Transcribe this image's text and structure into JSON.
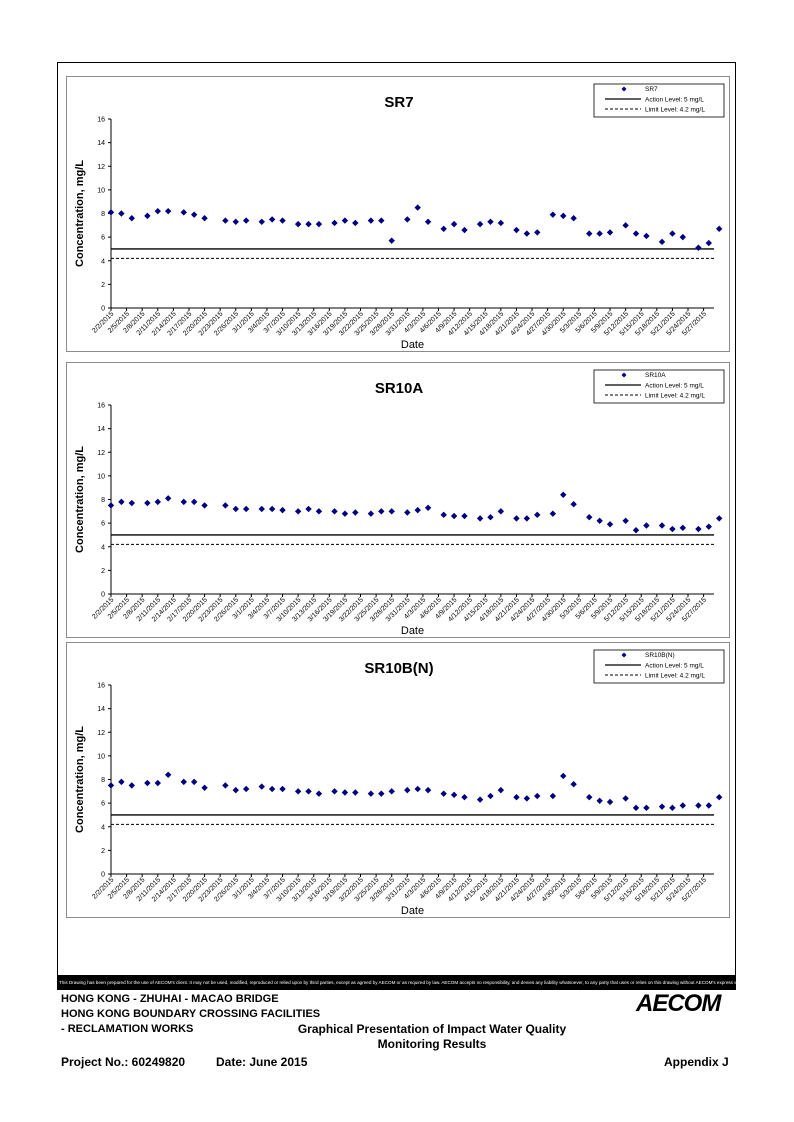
{
  "chart_data": [
    {
      "type": "scatter",
      "title": "SR7",
      "xlabel": "Date",
      "ylabel": "Concentration, mg/L",
      "ylim": [
        0,
        16
      ],
      "yticks": [
        0,
        2,
        4,
        6,
        8,
        10,
        12,
        14,
        16
      ],
      "xlim": [
        "2/2/2015",
        "5/29/2015"
      ],
      "xtick_labels": [
        "2/2/2015",
        "2/5/2015",
        "2/8/2015",
        "2/11/2015",
        "2/14/2015",
        "2/17/2015",
        "2/20/2015",
        "2/23/2015",
        "2/26/2015",
        "3/1/2015",
        "3/4/2015",
        "3/7/2015",
        "3/10/2015",
        "3/13/2015",
        "3/16/2015",
        "3/19/2015",
        "3/22/2015",
        "3/25/2015",
        "3/28/2015",
        "3/31/2015",
        "4/3/2015",
        "4/6/2015",
        "4/9/2015",
        "4/12/2015",
        "4/15/2015",
        "4/18/2015",
        "4/21/2015",
        "4/24/2015",
        "4/27/2015",
        "4/30/2015",
        "5/3/2015",
        "5/6/2015",
        "5/9/2015",
        "5/12/2015",
        "5/15/2015",
        "5/18/2015",
        "5/21/2015",
        "5/24/2015",
        "5/27/2015"
      ],
      "series": [
        {
          "name": "SR7",
          "color": "#000080",
          "x": [
            "2/2/2015",
            "2/4/2015",
            "2/6/2015",
            "2/9/2015",
            "2/11/2015",
            "2/13/2015",
            "2/16/2015",
            "2/18/2015",
            "2/20/2015",
            "2/24/2015",
            "2/26/2015",
            "2/28/2015",
            "3/3/2015",
            "3/5/2015",
            "3/7/2015",
            "3/10/2015",
            "3/12/2015",
            "3/14/2015",
            "3/17/2015",
            "3/19/2015",
            "3/21/2015",
            "3/24/2015",
            "3/26/2015",
            "3/28/2015",
            "3/31/2015",
            "4/2/2015",
            "4/4/2015",
            "4/7/2015",
            "4/9/2015",
            "4/11/2015",
            "4/14/2015",
            "4/16/2015",
            "4/18/2015",
            "4/21/2015",
            "4/23/2015",
            "4/25/2015",
            "4/28/2015",
            "4/30/2015",
            "5/2/2015",
            "5/5/2015",
            "5/7/2015",
            "5/9/2015",
            "5/12/2015",
            "5/14/2015",
            "5/16/2015",
            "5/19/2015",
            "5/21/2015",
            "5/23/2015",
            "5/26/2015",
            "5/28/2015",
            "5/30/2015"
          ],
          "values": [
            8.1,
            8.0,
            7.6,
            7.8,
            8.2,
            8.2,
            8.1,
            7.9,
            7.6,
            7.4,
            7.3,
            7.4,
            7.3,
            7.5,
            7.4,
            7.1,
            7.1,
            7.1,
            7.2,
            7.4,
            7.2,
            7.4,
            7.4,
            5.7,
            7.5,
            8.5,
            7.3,
            6.7,
            7.1,
            6.6,
            7.1,
            7.3,
            7.2,
            6.6,
            6.3,
            6.4,
            7.9,
            7.8,
            7.6,
            6.3,
            6.3,
            6.4,
            7.0,
            6.3,
            6.1,
            5.6,
            6.3,
            6.0,
            5.1,
            5.5,
            6.7
          ]
        },
        {
          "name": "Action Level: 5 mg/L",
          "constant": 5,
          "style": "solid"
        },
        {
          "name": "Limit Level: 4.2 mg/L",
          "constant": 4.2,
          "style": "dashed"
        }
      ],
      "legend": "top-right"
    },
    {
      "type": "scatter",
      "title": "SR10A",
      "xlabel": "Date",
      "ylabel": "Concentration, mg/L",
      "ylim": [
        0,
        16
      ],
      "yticks": [
        0,
        2,
        4,
        6,
        8,
        10,
        12,
        14,
        16
      ],
      "xlim": [
        "2/2/2015",
        "5/29/2015"
      ],
      "xtick_labels": [
        "2/2/2015",
        "2/5/2015",
        "2/8/2015",
        "2/11/2015",
        "2/14/2015",
        "2/17/2015",
        "2/20/2015",
        "2/23/2015",
        "2/26/2015",
        "3/1/2015",
        "3/4/2015",
        "3/7/2015",
        "3/10/2015",
        "3/13/2015",
        "3/16/2015",
        "3/19/2015",
        "3/22/2015",
        "3/25/2015",
        "3/28/2015",
        "3/31/2015",
        "4/3/2015",
        "4/6/2015",
        "4/9/2015",
        "4/12/2015",
        "4/15/2015",
        "4/18/2015",
        "4/21/2015",
        "4/24/2015",
        "4/27/2015",
        "4/30/2015",
        "5/3/2015",
        "5/6/2015",
        "5/9/2015",
        "5/12/2015",
        "5/15/2015",
        "5/18/2015",
        "5/21/2015",
        "5/24/2015",
        "5/27/2015"
      ],
      "series": [
        {
          "name": "SR10A",
          "color": "#000080",
          "x": [
            "2/2/2015",
            "2/4/2015",
            "2/6/2015",
            "2/9/2015",
            "2/11/2015",
            "2/13/2015",
            "2/16/2015",
            "2/18/2015",
            "2/20/2015",
            "2/24/2015",
            "2/26/2015",
            "2/28/2015",
            "3/3/2015",
            "3/5/2015",
            "3/7/2015",
            "3/10/2015",
            "3/12/2015",
            "3/14/2015",
            "3/17/2015",
            "3/19/2015",
            "3/21/2015",
            "3/24/2015",
            "3/26/2015",
            "3/28/2015",
            "3/31/2015",
            "4/2/2015",
            "4/4/2015",
            "4/7/2015",
            "4/9/2015",
            "4/11/2015",
            "4/14/2015",
            "4/16/2015",
            "4/18/2015",
            "4/21/2015",
            "4/23/2015",
            "4/25/2015",
            "4/28/2015",
            "4/30/2015",
            "5/2/2015",
            "5/5/2015",
            "5/7/2015",
            "5/9/2015",
            "5/12/2015",
            "5/14/2015",
            "5/16/2015",
            "5/19/2015",
            "5/21/2015",
            "5/23/2015",
            "5/26/2015",
            "5/28/2015",
            "5/30/2015"
          ],
          "values": [
            7.5,
            7.8,
            7.7,
            7.7,
            7.8,
            8.1,
            7.8,
            7.8,
            7.5,
            7.5,
            7.2,
            7.2,
            7.2,
            7.2,
            7.1,
            7.0,
            7.2,
            7.0,
            7.0,
            6.8,
            6.9,
            6.8,
            7.0,
            7.0,
            6.9,
            7.1,
            7.3,
            6.7,
            6.6,
            6.6,
            6.4,
            6.5,
            7.0,
            6.4,
            6.4,
            6.7,
            6.8,
            8.4,
            7.6,
            6.5,
            6.2,
            5.9,
            6.2,
            5.4,
            5.8,
            5.8,
            5.5,
            5.6,
            5.5,
            5.7,
            6.4
          ]
        },
        {
          "name": "Action Level: 5 mg/L",
          "constant": 5,
          "style": "solid"
        },
        {
          "name": "Limit Level: 4.2 mg/L",
          "constant": 4.2,
          "style": "dashed"
        }
      ],
      "legend": "top-right"
    },
    {
      "type": "scatter",
      "title": "SR10B(N)",
      "xlabel": "Date",
      "ylabel": "Concentration, mg/L",
      "ylim": [
        0,
        16
      ],
      "yticks": [
        0,
        2,
        4,
        6,
        8,
        10,
        12,
        14,
        16
      ],
      "xlim": [
        "2/2/2015",
        "5/29/2015"
      ],
      "xtick_labels": [
        "2/2/2015",
        "2/5/2015",
        "2/8/2015",
        "2/11/2015",
        "2/14/2015",
        "2/17/2015",
        "2/20/2015",
        "2/23/2015",
        "2/26/2015",
        "3/1/2015",
        "3/4/2015",
        "3/7/2015",
        "3/10/2015",
        "3/13/2015",
        "3/16/2015",
        "3/19/2015",
        "3/22/2015",
        "3/25/2015",
        "3/28/2015",
        "3/31/2015",
        "4/3/2015",
        "4/6/2015",
        "4/9/2015",
        "4/12/2015",
        "4/15/2015",
        "4/18/2015",
        "4/21/2015",
        "4/24/2015",
        "4/27/2015",
        "4/30/2015",
        "5/3/2015",
        "5/6/2015",
        "5/9/2015",
        "5/12/2015",
        "5/15/2015",
        "5/18/2015",
        "5/21/2015",
        "5/24/2015",
        "5/27/2015"
      ],
      "series": [
        {
          "name": "SR10B(N)",
          "color": "#000080",
          "x": [
            "2/2/2015",
            "2/4/2015",
            "2/6/2015",
            "2/9/2015",
            "2/11/2015",
            "2/13/2015",
            "2/16/2015",
            "2/18/2015",
            "2/20/2015",
            "2/24/2015",
            "2/26/2015",
            "2/28/2015",
            "3/3/2015",
            "3/5/2015",
            "3/7/2015",
            "3/10/2015",
            "3/12/2015",
            "3/14/2015",
            "3/17/2015",
            "3/19/2015",
            "3/21/2015",
            "3/24/2015",
            "3/26/2015",
            "3/28/2015",
            "3/31/2015",
            "4/2/2015",
            "4/4/2015",
            "4/7/2015",
            "4/9/2015",
            "4/11/2015",
            "4/14/2015",
            "4/16/2015",
            "4/18/2015",
            "4/21/2015",
            "4/23/2015",
            "4/25/2015",
            "4/28/2015",
            "4/30/2015",
            "5/2/2015",
            "5/5/2015",
            "5/7/2015",
            "5/9/2015",
            "5/12/2015",
            "5/14/2015",
            "5/16/2015",
            "5/19/2015",
            "5/21/2015",
            "5/23/2015",
            "5/26/2015",
            "5/28/2015",
            "5/30/2015"
          ],
          "values": [
            7.5,
            7.8,
            7.5,
            7.7,
            7.7,
            8.4,
            7.8,
            7.8,
            7.3,
            7.5,
            7.1,
            7.2,
            7.4,
            7.2,
            7.2,
            7.0,
            7.0,
            6.8,
            7.0,
            6.9,
            6.9,
            6.8,
            6.8,
            7.0,
            7.1,
            7.2,
            7.1,
            6.8,
            6.7,
            6.5,
            6.3,
            6.6,
            7.1,
            6.5,
            6.4,
            6.6,
            6.6,
            8.3,
            7.6,
            6.5,
            6.2,
            6.1,
            6.4,
            5.6,
            5.6,
            5.7,
            5.6,
            5.8,
            5.8,
            5.8,
            6.5
          ]
        },
        {
          "name": "Action Level: 5 mg/L",
          "constant": 5,
          "style": "solid"
        },
        {
          "name": "Limit Level: 4.2 mg/L",
          "constant": 4.2,
          "style": "dashed"
        }
      ],
      "legend": "top-right"
    }
  ],
  "disclaimer": "This Drawing has been prepared for the use of AECOM's client. It may not be used, modified, reproduced or relied upon by third parties, except as agreed by AECOM or as required by law. AECOM accepts no responsibility, and denies any liability whatsoever, to any party that uses or relies on this drawing without AECOM's express written consent.",
  "footer": {
    "project_line1": "HONG KONG - ZHUHAI - MACAO BRIDGE",
    "project_line2": "HONG KONG BOUNDARY CROSSING FACILITIES",
    "project_line3": "- RECLAMATION WORKS",
    "logo": "AECOM",
    "title_line1": "Graphical Presentation of Impact Water Quality",
    "title_line2": "Monitoring Results",
    "project_no": "Project No.: 60249820",
    "date": "Date: June 2015",
    "appendix": "Appendix J"
  }
}
